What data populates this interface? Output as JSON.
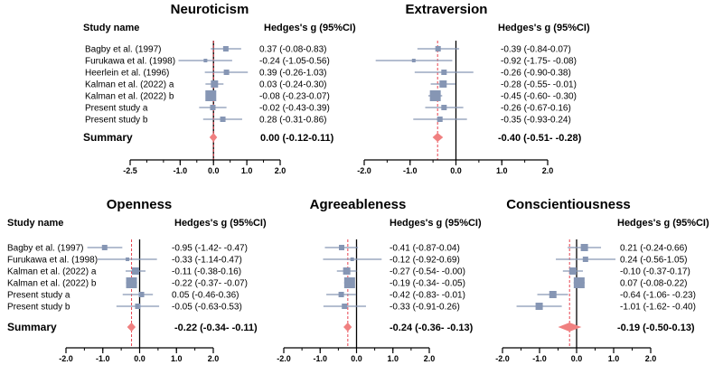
{
  "figure": {
    "header_suffix": "(95%CI)"
  },
  "chart_data": [
    {
      "type": "forest",
      "title": "Neuroticism",
      "study_header": "Study name",
      "estimate_header": "Hedges's g (95%CI)",
      "xlim": [
        -2.5,
        2.0
      ],
      "ticks": [
        "-2.5",
        "-1.0",
        "0.0",
        "1.0",
        "2.0"
      ],
      "tick_values": [
        -2.5,
        -1.0,
        0.0,
        1.0,
        2.0
      ],
      "studies": [
        {
          "name": "Bagby et al. (1997)",
          "g": 0.37,
          "lo": -0.08,
          "hi": 0.83,
          "text": "0.37 (-0.08-0.83)"
        },
        {
          "name": "Furukawa et al. (1998)",
          "g": -0.24,
          "lo": -1.05,
          "hi": 0.56,
          "text": "-0.24 (-1.05-0.56)"
        },
        {
          "name": "Heerlein et al. (1996)",
          "g": 0.39,
          "lo": -0.26,
          "hi": 1.03,
          "text": "0.39 (-0.26-1.03)"
        },
        {
          "name": "Kalman et al. (2022) a",
          "g": 0.03,
          "lo": -0.24,
          "hi": 0.3,
          "text": "0.03 (-0.24-0.30)"
        },
        {
          "name": "Kalman et al. (2022) b",
          "g": -0.08,
          "lo": -0.23,
          "hi": 0.07,
          "text": "-0.08 (-0.23-0.07)"
        },
        {
          "name": "Present study a",
          "g": -0.02,
          "lo": -0.43,
          "hi": 0.39,
          "text": "-0.02 (-0.43-0.39)"
        },
        {
          "name": "Present study b",
          "g": 0.28,
          "lo": -0.31,
          "hi": 0.86,
          "text": "0.28 (-0.31-0.86)"
        }
      ],
      "summary_label": "Summary",
      "summary": {
        "g": 0.0,
        "lo": -0.12,
        "hi": 0.11,
        "text": "0.00 (-0.12-0.11)"
      }
    },
    {
      "type": "forest",
      "title": "Extraversion",
      "study_header": "",
      "estimate_header": "Hedges's g (95%CI)",
      "xlim": [
        -2.0,
        2.0
      ],
      "ticks": [
        "-2.0",
        "-1.0",
        "0.0",
        "1.0",
        "2.0"
      ],
      "tick_values": [
        -2.0,
        -1.0,
        0.0,
        1.0,
        2.0
      ],
      "studies": [
        {
          "name": "",
          "g": -0.39,
          "lo": -0.84,
          "hi": 0.07,
          "text": "-0.39 (-0.84-0.07)"
        },
        {
          "name": "",
          "g": -0.92,
          "lo": -1.75,
          "hi": -0.08,
          "text": "-0.92 (-1.75- -0.08)"
        },
        {
          "name": "",
          "g": -0.26,
          "lo": -0.9,
          "hi": 0.38,
          "text": "-0.26 (-0.90-0.38)"
        },
        {
          "name": "",
          "g": -0.28,
          "lo": -0.55,
          "hi": -0.01,
          "text": "-0.28 (-0.55- -0.01)"
        },
        {
          "name": "",
          "g": -0.45,
          "lo": -0.6,
          "hi": -0.3,
          "text": "-0.45 (-0.60- -0.30)"
        },
        {
          "name": "",
          "g": -0.26,
          "lo": -0.67,
          "hi": 0.16,
          "text": "-0.26 (-0.67-0.16)"
        },
        {
          "name": "",
          "g": -0.35,
          "lo": -0.93,
          "hi": 0.24,
          "text": "-0.35 (-0.93-0.24)"
        }
      ],
      "summary_label": "",
      "summary": {
        "g": -0.4,
        "lo": -0.51,
        "hi": -0.28,
        "text": "-0.40 (-0.51- -0.28)"
      }
    },
    {
      "type": "forest",
      "title": "Openness",
      "study_header": "Study name",
      "estimate_header": "Hedges's g (95%CI)",
      "xlim": [
        -2.0,
        2.0
      ],
      "ticks": [
        "-2.0",
        "-1.0",
        "0.0",
        "1.0",
        "2.0"
      ],
      "tick_values": [
        -2.0,
        -1.0,
        0.0,
        1.0,
        2.0
      ],
      "studies": [
        {
          "name": "Bagby et al. (1997)",
          "g": -0.95,
          "lo": -1.42,
          "hi": -0.47,
          "text": "-0.95 (-1.42- -0.47)"
        },
        {
          "name": "Furukawa et al. (1998)",
          "g": -0.33,
          "lo": -1.14,
          "hi": 0.47,
          "text": "-0.33 (-1.14-0.47)"
        },
        {
          "name": "Kalman et al. (2022) a",
          "g": -0.11,
          "lo": -0.38,
          "hi": 0.16,
          "text": "-0.11 (-0.38-0.16)"
        },
        {
          "name": "Kalman et al. (2022) b",
          "g": -0.22,
          "lo": -0.37,
          "hi": -0.07,
          "text": "-0.22 (-0.37- -0.07)"
        },
        {
          "name": "Present study a",
          "g": 0.05,
          "lo": -0.46,
          "hi": 0.36,
          "text": "0.05 (-0.46-0.36)"
        },
        {
          "name": "Present study b",
          "g": -0.05,
          "lo": -0.63,
          "hi": 0.53,
          "text": "-0.05 (-0.63-0.53)"
        }
      ],
      "summary_label": "Summary",
      "summary": {
        "g": -0.22,
        "lo": -0.34,
        "hi": -0.11,
        "text": "-0.22 (-0.34- -0.11)"
      }
    },
    {
      "type": "forest",
      "title": "Agreeableness",
      "study_header": "",
      "estimate_header": "Hedges's g (95%CI)",
      "xlim": [
        -2.0,
        2.0
      ],
      "ticks": [
        "-2.0",
        "-1.0",
        "0.0",
        "1.0",
        "2.0"
      ],
      "tick_values": [
        -2.0,
        -1.0,
        0.0,
        1.0,
        2.0
      ],
      "studies": [
        {
          "name": "",
          "g": -0.41,
          "lo": -0.87,
          "hi": 0.04,
          "text": "-0.41 (-0.87-0.04)"
        },
        {
          "name": "",
          "g": -0.12,
          "lo": -0.92,
          "hi": 0.69,
          "text": "-0.12 (-0.92-0.69)"
        },
        {
          "name": "",
          "g": -0.27,
          "lo": -0.54,
          "hi": -0.0,
          "text": "-0.27 (-0.54- -0.00)"
        },
        {
          "name": "",
          "g": -0.19,
          "lo": -0.34,
          "hi": -0.05,
          "text": "-0.19 (-0.34- -0.05)"
        },
        {
          "name": "",
          "g": -0.42,
          "lo": -0.83,
          "hi": -0.01,
          "text": "-0.42 (-0.83- -0.01)"
        },
        {
          "name": "",
          "g": -0.33,
          "lo": -0.91,
          "hi": 0.26,
          "text": "-0.33 (-0.91-0.26)"
        }
      ],
      "summary_label": "",
      "summary": {
        "g": -0.24,
        "lo": -0.36,
        "hi": -0.13,
        "text": "-0.24 (-0.36- -0.13)"
      }
    },
    {
      "type": "forest",
      "title": "Conscientiousness",
      "study_header": "",
      "estimate_header": "Hedges's g (95%CI)",
      "xlim": [
        -2.0,
        2.0
      ],
      "ticks": [
        "-2.0",
        "-1.0",
        "0.0",
        "1.0",
        "2.0"
      ],
      "tick_values": [
        -2.0,
        -1.0,
        0.0,
        1.0,
        2.0
      ],
      "studies": [
        {
          "name": "",
          "g": 0.21,
          "lo": -0.24,
          "hi": 0.66,
          "text": "0.21 (-0.24-0.66)"
        },
        {
          "name": "",
          "g": 0.24,
          "lo": -0.56,
          "hi": 1.05,
          "text": "0.24 (-0.56-1.05)"
        },
        {
          "name": "",
          "g": -0.1,
          "lo": -0.37,
          "hi": 0.17,
          "text": "-0.10 (-0.37-0.17)"
        },
        {
          "name": "",
          "g": 0.07,
          "lo": -0.08,
          "hi": 0.22,
          "text": "0.07 (-0.08-0.22)"
        },
        {
          "name": "",
          "g": -0.64,
          "lo": -1.06,
          "hi": -0.23,
          "text": "-0.64 (-1.06- -0.23)"
        },
        {
          "name": "",
          "g": -1.01,
          "lo": -1.62,
          "hi": -0.4,
          "text": "-1.01 (-1.62- -0.40)"
        }
      ],
      "summary_label": "",
      "summary": {
        "g": -0.19,
        "lo": -0.5,
        "hi": 0.13,
        "text": "-0.19 (-0.50-0.13)"
      }
    }
  ],
  "colors": {
    "marker": "#8696b4",
    "ci": "#8696b4",
    "summary": "#f08080",
    "ref_dashed": "#e8434f",
    "axis": "#000000"
  }
}
